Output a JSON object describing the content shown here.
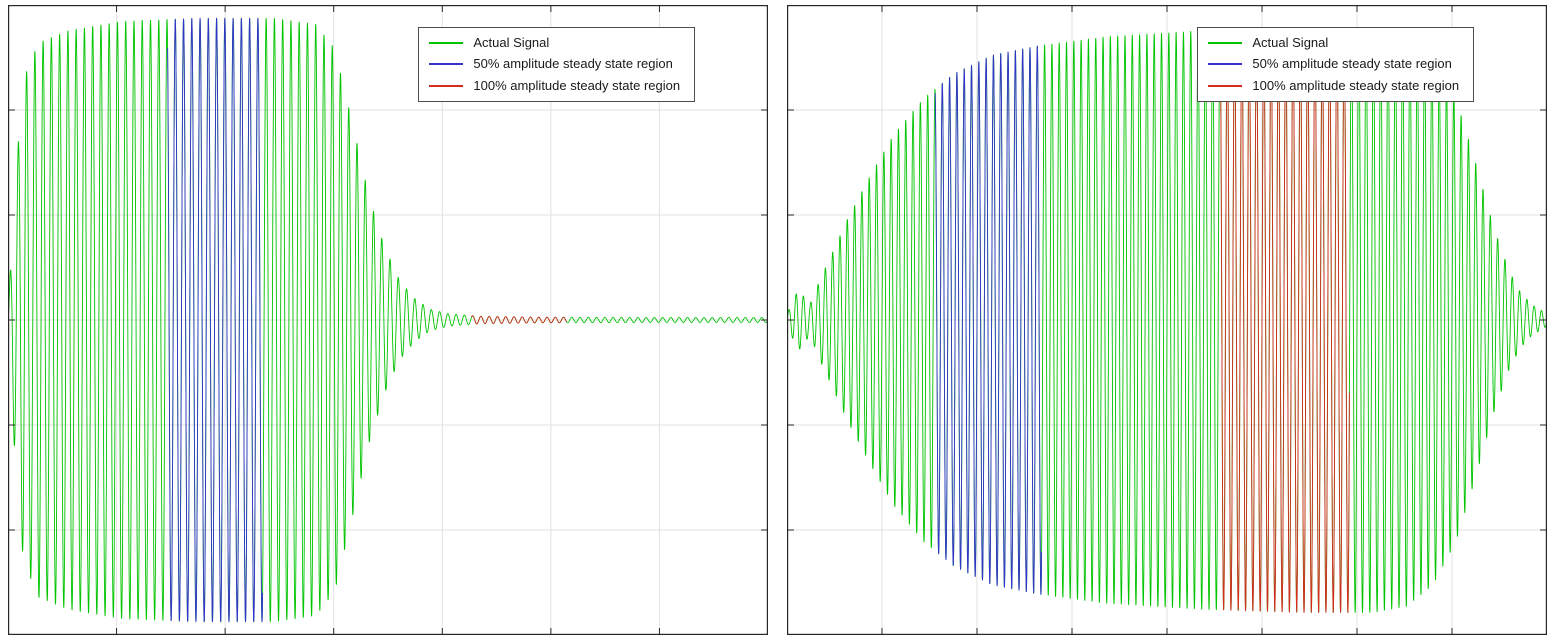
{
  "figure": {
    "background": "#ffffff",
    "plot_background": "#ffffff",
    "axis_color": "#262626",
    "grid_color": "#e2e2e2",
    "tick_color": "#262626"
  },
  "chart_data": [
    {
      "type": "line",
      "title": "",
      "xlabel": "",
      "ylabel": "",
      "grid": true,
      "legend_position": "inside-top-right",
      "tick_labels_visible": false,
      "x_range_normalized": [
        0,
        1
      ],
      "y_range_normalized": [
        -1,
        1
      ],
      "x_tick_intervals": 7,
      "y_tick_intervals": 6,
      "cycles": 92,
      "description": "Decaying tone burst: rapid onset, sustained high amplitude to ~0.42 of x-range, exponential decay to near-zero by ~0.56, flat low-noise tail afterwards",
      "envelope_keypoints": [
        [
          0,
          0.01
        ],
        [
          0.008,
          0.4
        ],
        [
          0.02,
          0.78
        ],
        [
          0.04,
          0.9
        ],
        [
          0.08,
          0.94
        ],
        [
          0.15,
          0.97
        ],
        [
          0.25,
          0.98
        ],
        [
          0.35,
          0.98
        ],
        [
          0.405,
          0.96
        ],
        [
          0.43,
          0.88
        ],
        [
          0.455,
          0.62
        ],
        [
          0.475,
          0.4
        ],
        [
          0.495,
          0.24
        ],
        [
          0.515,
          0.13
        ],
        [
          0.535,
          0.07
        ],
        [
          0.555,
          0.035
        ],
        [
          0.58,
          0.02
        ],
        [
          0.62,
          0.012
        ],
        [
          0.7,
          0.009
        ],
        [
          0.85,
          0.008
        ],
        [
          1,
          0.008
        ]
      ],
      "series": [
        {
          "name": "Actual Signal",
          "color": "#00c400",
          "region_normalized": [
            0,
            1
          ]
        },
        {
          "name": "50% amplitude steady state region",
          "color": "#3333cc",
          "region_normalized": [
            0.21,
            0.335
          ]
        },
        {
          "name": "100% amplitude steady state region",
          "color": "#d62b1f",
          "region_normalized": [
            0.61,
            0.735
          ]
        }
      ]
    },
    {
      "type": "line",
      "title": "",
      "xlabel": "",
      "ylabel": "",
      "grid": true,
      "legend_position": "inside-top-right",
      "tick_labels_visible": false,
      "x_range_normalized": [
        0,
        1
      ],
      "y_range_normalized": [
        -1,
        1
      ],
      "x_tick_intervals": 8,
      "y_tick_intervals": 6,
      "cycles": 104,
      "description": "Slow-attack tone burst: small wobble at onset, amplitude grows to sustained plateau ~0.95 across mid-range, decays near right edge with small tail wobble",
      "envelope_keypoints": [
        [
          0,
          0.02
        ],
        [
          0.015,
          0.1
        ],
        [
          0.03,
          0.05
        ],
        [
          0.045,
          0.14
        ],
        [
          0.06,
          0.22
        ],
        [
          0.08,
          0.33
        ],
        [
          0.11,
          0.47
        ],
        [
          0.14,
          0.6
        ],
        [
          0.18,
          0.72
        ],
        [
          0.22,
          0.8
        ],
        [
          0.27,
          0.86
        ],
        [
          0.33,
          0.89
        ],
        [
          0.42,
          0.92
        ],
        [
          0.55,
          0.94
        ],
        [
          0.68,
          0.95
        ],
        [
          0.77,
          0.95
        ],
        [
          0.815,
          0.93
        ],
        [
          0.85,
          0.86
        ],
        [
          0.88,
          0.72
        ],
        [
          0.905,
          0.52
        ],
        [
          0.93,
          0.3
        ],
        [
          0.95,
          0.16
        ],
        [
          0.965,
          0.09
        ],
        [
          0.98,
          0.05
        ],
        [
          0.99,
          0.035
        ],
        [
          1,
          0.02
        ]
      ],
      "series": [
        {
          "name": "Actual Signal",
          "color": "#00c400",
          "region_normalized": [
            0,
            1
          ]
        },
        {
          "name": "50% amplitude steady state region",
          "color": "#3333cc",
          "region_normalized": [
            0.195,
            0.335
          ]
        },
        {
          "name": "100% amplitude steady state region",
          "color": "#d62b1f",
          "region_normalized": [
            0.57,
            0.74
          ]
        }
      ]
    }
  ]
}
